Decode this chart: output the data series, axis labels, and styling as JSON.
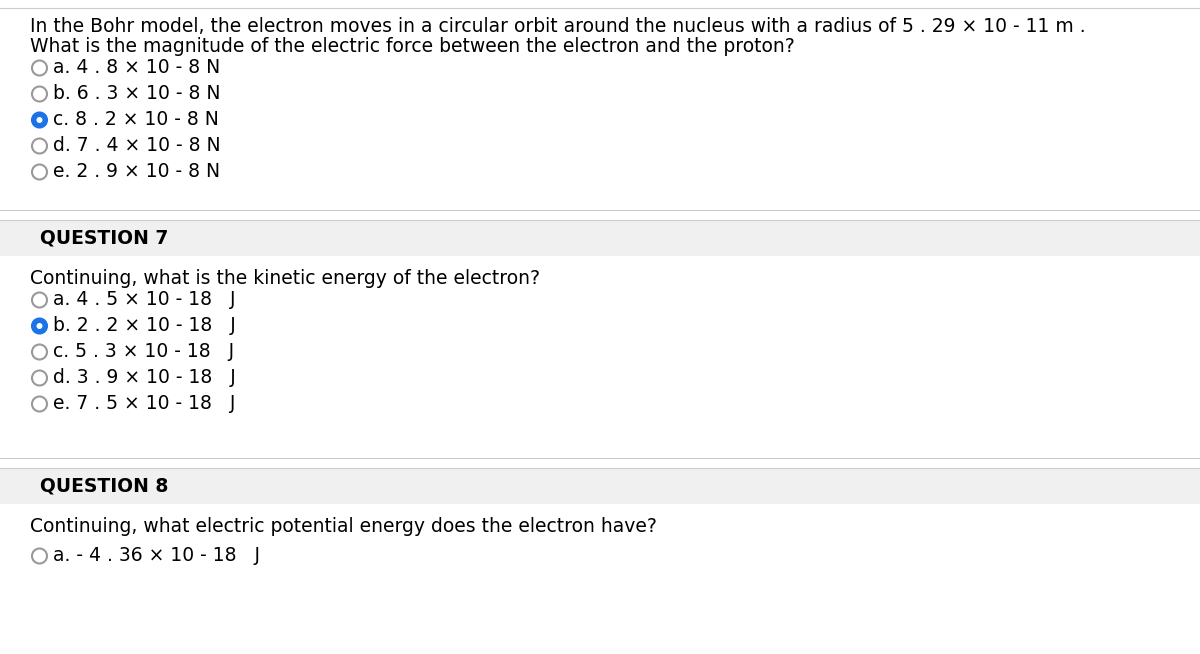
{
  "bg_color": "#ffffff",
  "separator_color": "#cccccc",
  "question_header_color": "#f0f0f0",
  "text_color": "#000000",
  "radio_empty_color": "#ffffff",
  "radio_empty_edge": "#999999",
  "radio_filled_color": "#1a73e8",
  "radio_filled_edge": "#1a73e8",
  "font_size_body": 13.5,
  "intro_text_line1": "In the Bohr model, the electron moves in a circular orbit around the nucleus with a radius of 5 . 29 × 10 - 11 m .",
  "intro_text_line2": "What is the magnitude of the electric force between the electron and the proton?",
  "q6_choices": [
    {
      "label": "a. 4 . 8 × 10 - 8 N",
      "selected": false
    },
    {
      "label": "b. 6 . 3 × 10 - 8 N",
      "selected": false
    },
    {
      "label": "c. 8 . 2 × 10 - 8 N",
      "selected": true
    },
    {
      "label": "d. 7 . 4 × 10 - 8 N",
      "selected": false
    },
    {
      "label": "e. 2 . 9 × 10 - 8 N",
      "selected": false
    }
  ],
  "q7_header": "QUESTION 7",
  "q7_text": "Continuing, what is the kinetic energy of the electron?",
  "q7_choices": [
    {
      "label": "a. 4 . 5 × 10 - 18   J",
      "selected": false
    },
    {
      "label": "b. 2 . 2 × 10 - 18   J",
      "selected": true
    },
    {
      "label": "c. 5 . 3 × 10 - 18   J",
      "selected": false
    },
    {
      "label": "d. 3 . 9 × 10 - 18   J",
      "selected": false
    },
    {
      "label": "e. 7 . 5 × 10 - 18   J",
      "selected": false
    }
  ],
  "q8_header": "QUESTION 8",
  "q8_text": "Continuing, what electric potential energy does the electron have?",
  "q8_choices": [
    {
      "label": "a. - 4 . 36 × 10 - 18   J",
      "selected": false
    }
  ]
}
